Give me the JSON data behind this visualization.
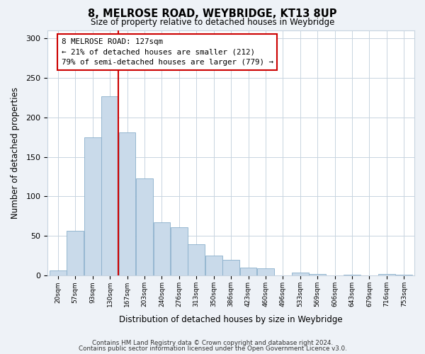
{
  "title": "8, MELROSE ROAD, WEYBRIDGE, KT13 8UP",
  "subtitle": "Size of property relative to detached houses in Weybridge",
  "xlabel": "Distribution of detached houses by size in Weybridge",
  "ylabel": "Number of detached properties",
  "bar_labels": [
    "20sqm",
    "57sqm",
    "93sqm",
    "130sqm",
    "167sqm",
    "203sqm",
    "240sqm",
    "276sqm",
    "313sqm",
    "350sqm",
    "386sqm",
    "423sqm",
    "460sqm",
    "496sqm",
    "533sqm",
    "569sqm",
    "606sqm",
    "643sqm",
    "679sqm",
    "716sqm",
    "753sqm"
  ],
  "bar_values": [
    7,
    57,
    175,
    226,
    181,
    123,
    67,
    61,
    40,
    25,
    20,
    10,
    9,
    0,
    4,
    2,
    0,
    1,
    0,
    2,
    1
  ],
  "bar_color": "#c9daea",
  "bar_edgecolor": "#89aecb",
  "vline_position": 3.5,
  "annotation_text": "8 MELROSE ROAD: 127sqm\n← 21% of detached houses are smaller (212)\n79% of semi-detached houses are larger (779) →",
  "vline_color": "#cc0000",
  "annotation_box_edgecolor": "#cc0000",
  "ylim": [
    0,
    310
  ],
  "yticks": [
    0,
    50,
    100,
    150,
    200,
    250,
    300
  ],
  "footnote1": "Contains HM Land Registry data © Crown copyright and database right 2024.",
  "footnote2": "Contains public sector information licensed under the Open Government Licence v3.0.",
  "background_color": "#eef2f7",
  "plot_background": "#ffffff",
  "grid_color": "#c8d4e0"
}
